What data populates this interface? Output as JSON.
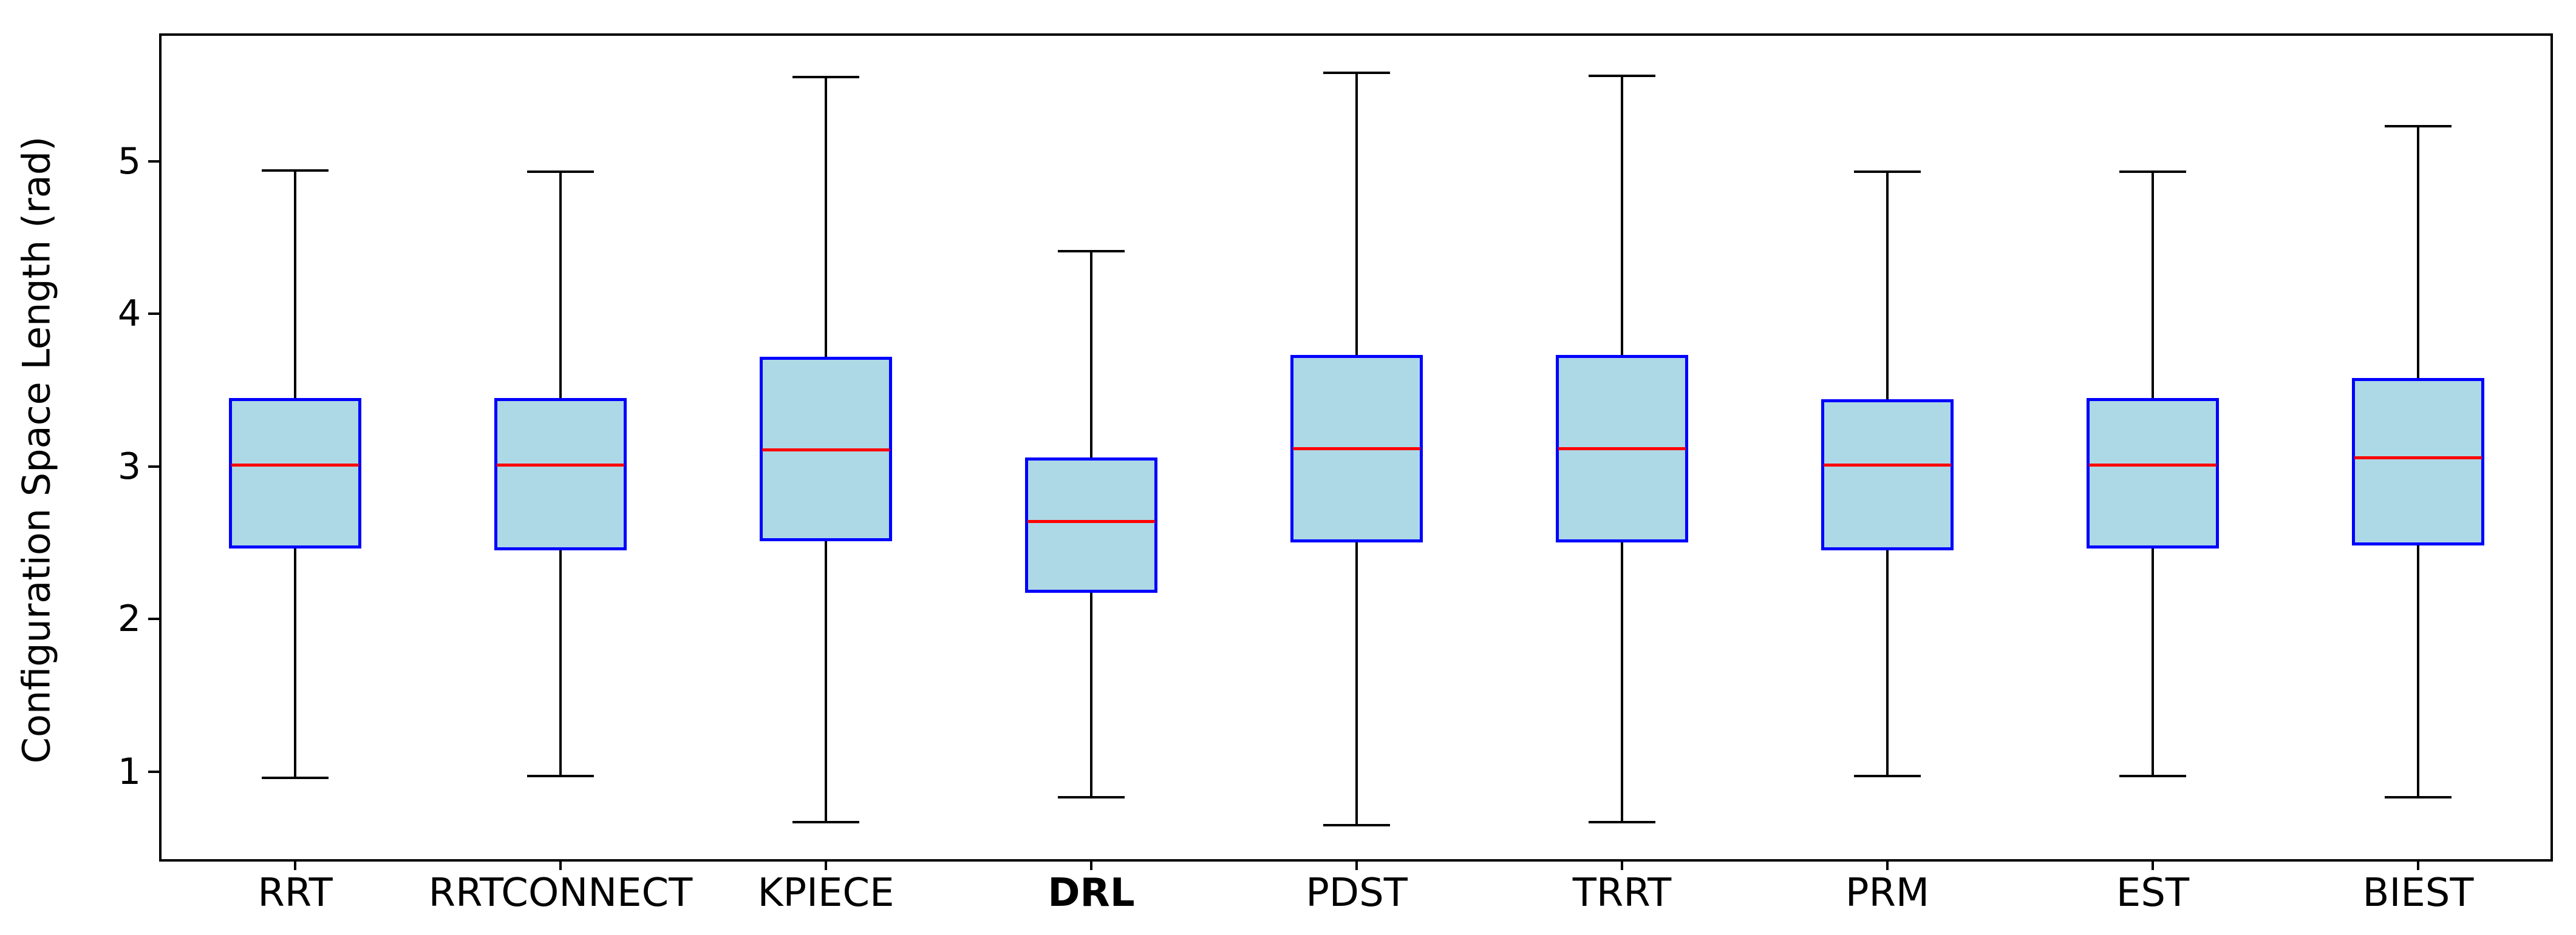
{
  "chart_data": {
    "type": "boxplot",
    "title": "",
    "ylabel": "Configuration Space Length (rad)",
    "xlabel": "",
    "ylim": [
      0.41,
      5.83
    ],
    "yticks": [
      1,
      2,
      3,
      4,
      5
    ],
    "grid": false,
    "categories": [
      "RRT",
      "RRTCONNECT",
      "KPIECE",
      "DRL",
      "PDST",
      "TRRT",
      "PRM",
      "EST",
      "BIEST"
    ],
    "emphasized_category": "DRL",
    "series": [
      {
        "label": "RRT",
        "whisker_low": 0.96,
        "q1": 2.46,
        "median": 3.01,
        "q3": 3.45,
        "whisker_high": 4.94,
        "bold": false
      },
      {
        "label": "RRTCONNECT",
        "whisker_low": 0.97,
        "q1": 2.45,
        "median": 3.01,
        "q3": 3.45,
        "whisker_high": 4.93,
        "bold": false
      },
      {
        "label": "KPIECE",
        "whisker_low": 0.67,
        "q1": 2.51,
        "median": 3.11,
        "q3": 3.72,
        "whisker_high": 5.55,
        "bold": false
      },
      {
        "label": "DRL",
        "whisker_low": 0.83,
        "q1": 2.17,
        "median": 2.64,
        "q3": 3.06,
        "whisker_high": 4.41,
        "bold": true
      },
      {
        "label": "PDST",
        "whisker_low": 0.65,
        "q1": 2.5,
        "median": 3.12,
        "q3": 3.73,
        "whisker_high": 5.58,
        "bold": false
      },
      {
        "label": "TRRT",
        "whisker_low": 0.67,
        "q1": 2.5,
        "median": 3.12,
        "q3": 3.73,
        "whisker_high": 5.56,
        "bold": false
      },
      {
        "label": "PRM",
        "whisker_low": 0.97,
        "q1": 2.45,
        "median": 3.01,
        "q3": 3.44,
        "whisker_high": 4.93,
        "bold": false
      },
      {
        "label": "EST",
        "whisker_low": 0.97,
        "q1": 2.46,
        "median": 3.01,
        "q3": 3.45,
        "whisker_high": 4.93,
        "bold": false
      },
      {
        "label": "BIEST",
        "whisker_low": 0.83,
        "q1": 2.48,
        "median": 3.06,
        "q3": 3.58,
        "whisker_high": 5.23,
        "bold": false
      }
    ],
    "colors": {
      "box_fill": "#add8e6",
      "box_edge": "#0000ff",
      "median": "#ff0000",
      "whisker": "#000000",
      "axis": "#000000",
      "background": "#ffffff"
    },
    "legend": null
  }
}
